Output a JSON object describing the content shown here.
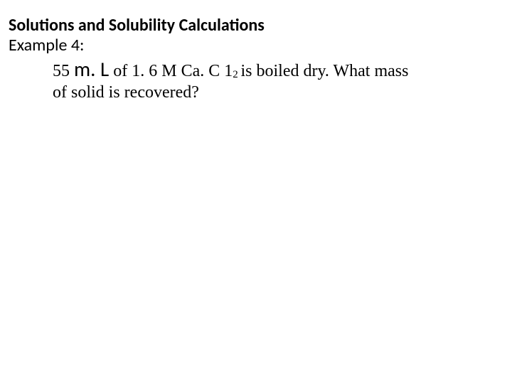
{
  "heading": "Solutions and Solubility Calculations",
  "example_label": "Example  4:",
  "line1": {
    "vol_number": "55 ",
    "vol_unit": "m. L",
    "of_text": " of 1. 6 M Ca. C 1",
    "subscript": "2 ",
    "rest": "is boiled dry. What mass"
  },
  "line2": "of solid is recovered?",
  "colors": {
    "background": "#ffffff",
    "text": "#000000"
  },
  "fonts": {
    "heading_family": "Calibri",
    "body_family": "Times New Roman",
    "heading_size_pt": 18,
    "body_size_pt": 18,
    "ml_size_pt": 22,
    "subscript_size_pt": 11
  }
}
